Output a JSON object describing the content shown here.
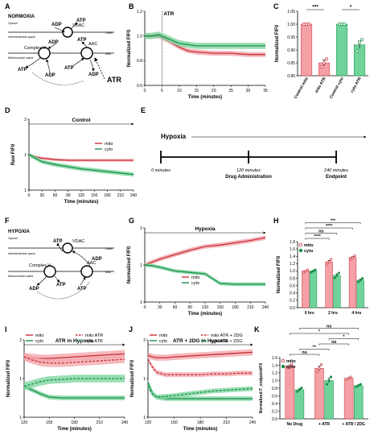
{
  "colors": {
    "mito": "#c9303a",
    "mito_band": "#f2a7ac",
    "cyto": "#1a8f4a",
    "cyto_band": "#7fd6a0",
    "bar_mito": "#f4a0a5",
    "bar_cyto": "#6fd39a"
  },
  "panel_labels": [
    "A",
    "B",
    "C",
    "D",
    "E",
    "F",
    "G",
    "H",
    "I",
    "J",
    "K"
  ],
  "diagram_A": {
    "title": "NORMOXIA",
    "cytosol": "Cytosol",
    "ims": "Intermembrane space",
    "matrix": "Mitochondrial matrix",
    "omm": "OMM",
    "imm": "IMM",
    "complex": "Complex V",
    "vdac": "VDAC",
    "aac": "AAC",
    "atp": "ATP",
    "adp": "ADP",
    "atr": "ATR"
  },
  "diagram_F": {
    "title": "HYPOXIA",
    "cytosol": "Cytosol",
    "ims": "Intermembrane space",
    "matrix": "Mitochondrial matrix",
    "omm": "OMM",
    "imm": "IMM",
    "complex": "Complex V",
    "vdac": "VDAC",
    "aac": "AAC",
    "atp": "ATP",
    "adp": "ADP"
  },
  "timeline_E": {
    "title": "Hypoxia",
    "labels": [
      "0 minutes",
      "120 minutes",
      "240 minutes"
    ],
    "events": [
      "Drug Administration",
      "Endpoint"
    ],
    "positions_min": [
      0,
      120,
      240
    ]
  },
  "chart_data": [
    {
      "id": "B",
      "type": "line",
      "annotation": "ATR",
      "annotation_x": 5,
      "xlabel": "Time (minutes)",
      "ylabel": "Normalized F/F0",
      "xlim": [
        0,
        35
      ],
      "ylim": [
        0.6,
        1.2
      ],
      "xticks": [
        0,
        5,
        10,
        15,
        20,
        25,
        30,
        35
      ],
      "yticks": [
        0.6,
        0.8,
        1.0,
        1.2
      ],
      "x": [
        0,
        2,
        4,
        5,
        7.5,
        10,
        12.5,
        15,
        20,
        25,
        30,
        35
      ],
      "series": [
        {
          "key": "mito",
          "values": [
            1.0,
            1.0,
            1.0,
            0.99,
            0.95,
            0.91,
            0.88,
            0.87,
            0.86,
            0.86,
            0.85,
            0.85
          ],
          "band": 0.02
        },
        {
          "key": "cyto",
          "values": [
            1.0,
            1.0,
            1.01,
            1.0,
            0.97,
            0.94,
            0.93,
            0.92,
            0.92,
            0.92,
            0.92,
            0.92
          ],
          "band": 0.025
        }
      ]
    },
    {
      "id": "C",
      "type": "bar",
      "ylabel": "Normalized F/F0",
      "ylim": [
        0.8,
        1.05
      ],
      "yticks": [
        0.8,
        0.85,
        0.9,
        0.95,
        1.0,
        1.05
      ],
      "categories": [
        "Control mito",
        "mito ATR",
        "Control cyto",
        "cyto ATR"
      ],
      "values": [
        1.0,
        0.85,
        1.0,
        0.92
      ],
      "errors": [
        0.0,
        0.012,
        0.0,
        0.015
      ],
      "points": [
        [
          1.0,
          1.0,
          1.0
        ],
        [
          0.835,
          0.85,
          0.865
        ],
        [
          1.0,
          1.0,
          1.0
        ],
        [
          0.895,
          0.93,
          0.94
        ]
      ],
      "bar_colors": [
        "mito",
        "mito",
        "cyto",
        "cyto"
      ],
      "significance": [
        {
          "from": 0,
          "to": 1,
          "label": "***"
        },
        {
          "from": 2,
          "to": 3,
          "label": "*"
        }
      ]
    },
    {
      "id": "D",
      "type": "line",
      "title": "Control",
      "xlabel": "Time (minutes)",
      "ylabel": "Raw F/F0",
      "xlim": [
        0,
        240
      ],
      "ylim": [
        0.5,
        1.5
      ],
      "xticks": [
        0,
        30,
        60,
        90,
        120,
        150,
        180,
        210,
        240
      ],
      "yticks": [
        0.5,
        1.0,
        1.5
      ],
      "x": [
        0,
        15,
        30,
        60,
        90,
        120,
        150,
        180,
        210,
        240
      ],
      "series": [
        {
          "key": "mito",
          "values": [
            1.0,
            0.97,
            0.95,
            0.93,
            0.92,
            0.92,
            0.92,
            0.92,
            0.92,
            0.92
          ],
          "band": 0.02
        },
        {
          "key": "cyto",
          "values": [
            1.0,
            0.95,
            0.9,
            0.86,
            0.83,
            0.8,
            0.78,
            0.76,
            0.74,
            0.72
          ],
          "band": 0.03
        }
      ],
      "legend": [
        "mito",
        "cyto"
      ],
      "legend_pos": "right"
    },
    {
      "id": "G",
      "type": "line",
      "title": "Hypoxia",
      "xlabel": "Time (minutes)",
      "ylabel": "Normalized F/F0",
      "xlim": [
        0,
        240
      ],
      "ylim": [
        0.5,
        1.5
      ],
      "xticks": [
        0,
        30,
        60,
        90,
        120,
        150,
        180,
        210,
        240
      ],
      "yticks": [
        0.5,
        1.0,
        1.5
      ],
      "x": [
        0,
        15,
        30,
        60,
        90,
        120,
        150,
        180,
        210,
        240
      ],
      "series": [
        {
          "key": "mito",
          "values": [
            1.0,
            1.04,
            1.08,
            1.14,
            1.2,
            1.25,
            1.27,
            1.3,
            1.33,
            1.37
          ],
          "band": 0.03
        },
        {
          "key": "cyto",
          "values": [
            1.0,
            0.99,
            0.97,
            0.92,
            0.9,
            0.88,
            0.75,
            0.74,
            0.74,
            0.74
          ],
          "band": 0.025
        }
      ],
      "legend": [
        "mito",
        "cyto"
      ],
      "legend_pos": "bottom-center"
    },
    {
      "id": "H",
      "type": "bar",
      "ylabel": "Normalized F/F0",
      "ylim": [
        0,
        1.8
      ],
      "yticks": [
        0.0,
        0.2,
        0.4,
        0.6,
        0.8,
        1.0,
        1.2,
        1.4,
        1.6,
        1.8
      ],
      "categories": [
        "0 hrs",
        "2 hrs",
        "4 hrs"
      ],
      "series": [
        {
          "key": "mito",
          "values": [
            1.0,
            1.25,
            1.37
          ],
          "errors": [
            0.0,
            0.04,
            0.03
          ]
        },
        {
          "key": "cyto",
          "values": [
            1.0,
            0.88,
            0.75
          ],
          "errors": [
            0.0,
            0.04,
            0.03
          ]
        }
      ],
      "legend": [
        "mito",
        "cyto"
      ],
      "legend_pos": "top-left",
      "significance": [
        {
          "from": [
            0,
            0
          ],
          "to": [
            1,
            0
          ],
          "label": "****"
        },
        {
          "from": [
            0,
            0
          ],
          "to": [
            1,
            1
          ],
          "label": "ns"
        },
        {
          "from": [
            0,
            0
          ],
          "to": [
            2,
            0
          ],
          "label": "****"
        },
        {
          "from": [
            0,
            0
          ],
          "to": [
            2,
            1
          ],
          "label": "***"
        }
      ]
    },
    {
      "id": "I",
      "type": "line",
      "title": "ATR in Hypoxia",
      "xlabel": "Time (minutes)",
      "ylabel": "Normalized F/F0",
      "xlim": [
        120,
        240
      ],
      "ylim": [
        0.5,
        1.5
      ],
      "xticks": [
        120,
        150,
        180,
        210,
        240
      ],
      "yticks": [
        0.5,
        1.0,
        1.5
      ],
      "x": [
        120,
        130,
        140,
        150,
        165,
        180,
        195,
        210,
        225,
        240
      ],
      "series": [
        {
          "key": "mito",
          "name": "mito",
          "values": [
            1.28,
            1.27,
            1.26,
            1.26,
            1.27,
            1.28,
            1.29,
            1.3,
            1.31,
            1.32
          ],
          "band": 0.05,
          "dash": false
        },
        {
          "key": "mito",
          "name": "mito ATR",
          "values": [
            1.28,
            1.24,
            1.21,
            1.2,
            1.2,
            1.21,
            1.22,
            1.23,
            1.24,
            1.25
          ],
          "band": 0.05,
          "dash": true
        },
        {
          "key": "cyto",
          "name": "cyto",
          "values": [
            0.9,
            0.85,
            0.8,
            0.76,
            0.75,
            0.75,
            0.75,
            0.75,
            0.75,
            0.75
          ],
          "band": 0.03,
          "dash": false
        },
        {
          "key": "cyto",
          "name": "cyto ATR",
          "values": [
            0.9,
            0.93,
            0.96,
            0.98,
            0.99,
            1.0,
            1.0,
            1.0,
            1.0,
            1.0
          ],
          "band": 0.05,
          "dash": true
        }
      ],
      "legend": [
        "mito",
        "mito ATR",
        "cyto",
        "cyto ATR"
      ],
      "legend_pos": "top"
    },
    {
      "id": "J",
      "type": "line",
      "title": "ATR + 2DG in Hypoxia",
      "xlabel": "Time (minutes)",
      "ylabel": "Normalized F/F0",
      "xlim": [
        120,
        240
      ],
      "ylim": [
        0.5,
        1.5
      ],
      "xticks": [
        120,
        150,
        180,
        210,
        240
      ],
      "yticks": [
        0.5,
        1.0,
        1.5
      ],
      "x": [
        120,
        125,
        130,
        140,
        150,
        165,
        180,
        195,
        210,
        225,
        240
      ],
      "series": [
        {
          "key": "mito",
          "name": "mito",
          "values": [
            1.3,
            1.28,
            1.27,
            1.27,
            1.28,
            1.29,
            1.3,
            1.31,
            1.32,
            1.33,
            1.34
          ],
          "band": 0.04,
          "dash": false
        },
        {
          "key": "mito",
          "name": "mito ATR + 2DG",
          "values": [
            1.25,
            1.15,
            1.08,
            1.05,
            1.05,
            1.05,
            1.05,
            1.06,
            1.06,
            1.07,
            1.07
          ],
          "band": 0.03,
          "dash": true
        },
        {
          "key": "cyto",
          "name": "cyto",
          "values": [
            0.95,
            0.82,
            0.76,
            0.74,
            0.74,
            0.74,
            0.74,
            0.74,
            0.74,
            0.74,
            0.74
          ],
          "band": 0.03,
          "dash": false
        },
        {
          "key": "cyto",
          "name": "cyto ATR + 2DG",
          "values": [
            0.9,
            0.8,
            0.76,
            0.77,
            0.78,
            0.8,
            0.82,
            0.84,
            0.85,
            0.86,
            0.87
          ],
          "band": 0.03,
          "dash": true
        }
      ],
      "legend": [
        "mito",
        "mito ATR + 2DG",
        "cyto",
        "cyto ATR + 2DG"
      ],
      "legend_pos": "top"
    },
    {
      "id": "K",
      "type": "bar",
      "ylabel": "Normalized F_endpoint/F0",
      "ylim": [
        0,
        1.6
      ],
      "yticks": [
        0.0,
        0.2,
        0.4,
        0.6,
        0.8,
        1.0,
        1.2,
        1.4,
        1.6
      ],
      "categories": [
        "No Drug",
        "+ ATR",
        "+ ATR / 2DG"
      ],
      "series": [
        {
          "key": "mito",
          "values": [
            1.38,
            1.32,
            1.06
          ],
          "errors": [
            0.03,
            0.06,
            0.02
          ]
        },
        {
          "key": "cyto",
          "values": [
            0.76,
            1.0,
            0.87
          ],
          "errors": [
            0.03,
            0.06,
            0.02
          ]
        }
      ],
      "legend": [
        "mito",
        "cyto"
      ],
      "legend_pos": "top-left",
      "significance": [
        {
          "from": [
            0,
            0
          ],
          "to": [
            1,
            0
          ],
          "label": "ns"
        },
        {
          "from": [
            0,
            1
          ],
          "to": [
            1,
            1
          ],
          "label": "**"
        },
        {
          "from": [
            1,
            0
          ],
          "to": [
            2,
            0
          ],
          "label": "ns"
        },
        {
          "from": [
            1,
            1
          ],
          "to": [
            2,
            1
          ],
          "label": "*"
        },
        {
          "from": [
            0,
            0
          ],
          "to": [
            2,
            0
          ],
          "label": "*"
        },
        {
          "from": [
            0,
            1
          ],
          "to": [
            2,
            1
          ],
          "label": "ns"
        }
      ]
    }
  ]
}
